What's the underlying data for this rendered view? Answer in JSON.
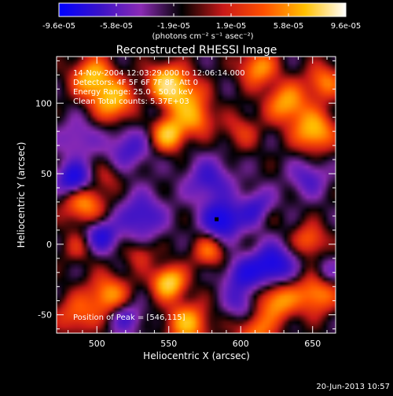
{
  "colorbar": {
    "tick_labels": [
      "-9.6e-05",
      "-5.8e-05",
      "-1.9e-05",
      "1.9e-05",
      "5.8e-05",
      "9.6e-05"
    ],
    "unit_label": "(photons cm⁻² s⁻¹ asec⁻²)",
    "range": [
      -9.6e-05,
      9.6e-05
    ],
    "colors": [
      "#0000ff",
      "#3a12c8",
      "#8a2ab4",
      "#000000",
      "#c81818",
      "#ff5000",
      "#ffc000",
      "#ffffff"
    ]
  },
  "chart_data": {
    "type": "heatmap",
    "title": "Reconstructed RHESSI Image",
    "xlabel": "Heliocentric X (arcsec)",
    "ylabel": "Heliocentric Y (arcsec)",
    "xlim": [
      472,
      666
    ],
    "ylim": [
      -63,
      133
    ],
    "xticks": [
      500,
      550,
      600,
      650
    ],
    "yticks": [
      -50,
      0,
      50,
      100
    ],
    "annotations": [
      "14-Nov-2004 12:03:29.000 to 12:06:14.000",
      "Detectors: 4F 5F 6F 7F 8F, Att 0",
      "Energy Range: 25.0 - 50.0 keV",
      "Clean     Total counts: 5.37E+03"
    ],
    "peak_label": "Position of Peak = [546,115]",
    "peak": [
      546,
      115
    ],
    "marker": [
      583,
      18
    ],
    "blobs": [
      {
        "x": 497,
        "y": 118,
        "v": 0.85,
        "s": 10
      },
      {
        "x": 512,
        "y": 101,
        "v": 0.8,
        "s": 10
      },
      {
        "x": 548,
        "y": 115,
        "v": 0.85,
        "s": 9
      },
      {
        "x": 560,
        "y": 103,
        "v": 0.7,
        "s": 11
      },
      {
        "x": 550,
        "y": 78,
        "v": 0.9,
        "s": 8
      },
      {
        "x": 570,
        "y": 88,
        "v": 0.5,
        "s": 8
      },
      {
        "x": 632,
        "y": 100,
        "v": 0.75,
        "s": 10
      },
      {
        "x": 651,
        "y": 80,
        "v": 0.85,
        "s": 10
      },
      {
        "x": 612,
        "y": 125,
        "v": 0.7,
        "s": 9
      },
      {
        "x": 658,
        "y": 115,
        "v": 0.6,
        "s": 9
      },
      {
        "x": 600,
        "y": 80,
        "v": 0.35,
        "s": 9
      },
      {
        "x": 491,
        "y": 29,
        "v": 0.7,
        "s": 10
      },
      {
        "x": 508,
        "y": 48,
        "v": 0.25,
        "s": 7
      },
      {
        "x": 487,
        "y": -2,
        "v": 0.3,
        "s": 8
      },
      {
        "x": 508,
        "y": -36,
        "v": 0.7,
        "s": 10
      },
      {
        "x": 486,
        "y": -50,
        "v": 0.5,
        "s": 10
      },
      {
        "x": 550,
        "y": -27,
        "v": 1.0,
        "s": 8
      },
      {
        "x": 578,
        "y": -5,
        "v": 0.55,
        "s": 8
      },
      {
        "x": 563,
        "y": -56,
        "v": 0.8,
        "s": 10
      },
      {
        "x": 625,
        "y": -40,
        "v": 0.75,
        "s": 10
      },
      {
        "x": 653,
        "y": -35,
        "v": 0.7,
        "s": 10
      },
      {
        "x": 610,
        "y": -62,
        "v": 0.6,
        "s": 9
      },
      {
        "x": 648,
        "y": 3,
        "v": 0.55,
        "s": 8
      },
      {
        "x": 530,
        "y": -7,
        "v": 0.35,
        "s": 7
      },
      {
        "x": 620,
        "y": 20,
        "v": 0.25,
        "s": 7
      },
      {
        "x": 487,
        "y": 75,
        "v": -0.35,
        "s": 10
      },
      {
        "x": 484,
        "y": 46,
        "v": -0.9,
        "s": 8
      },
      {
        "x": 522,
        "y": 68,
        "v": -0.5,
        "s": 10
      },
      {
        "x": 578,
        "y": 45,
        "v": -0.55,
        "s": 11
      },
      {
        "x": 587,
        "y": 17,
        "v": -0.95,
        "s": 9
      },
      {
        "x": 612,
        "y": 25,
        "v": -0.6,
        "s": 9
      },
      {
        "x": 503,
        "y": 6,
        "v": -0.7,
        "s": 8
      },
      {
        "x": 531,
        "y": 20,
        "v": -0.6,
        "s": 11
      },
      {
        "x": 622,
        "y": -15,
        "v": -0.9,
        "s": 10
      },
      {
        "x": 601,
        "y": -22,
        "v": -0.6,
        "s": 9
      },
      {
        "x": 647,
        "y": 47,
        "v": -0.45,
        "s": 9
      },
      {
        "x": 520,
        "y": -52,
        "v": -0.5,
        "s": 8
      },
      {
        "x": 600,
        "y": -42,
        "v": -0.4,
        "s": 8
      },
      {
        "x": 660,
        "y": -20,
        "v": -0.35,
        "s": 7
      },
      {
        "x": 537,
        "y": 95,
        "v": -0.2,
        "s": 6
      }
    ]
  },
  "footer": {
    "date": "20-Jun-2013 10:57"
  }
}
